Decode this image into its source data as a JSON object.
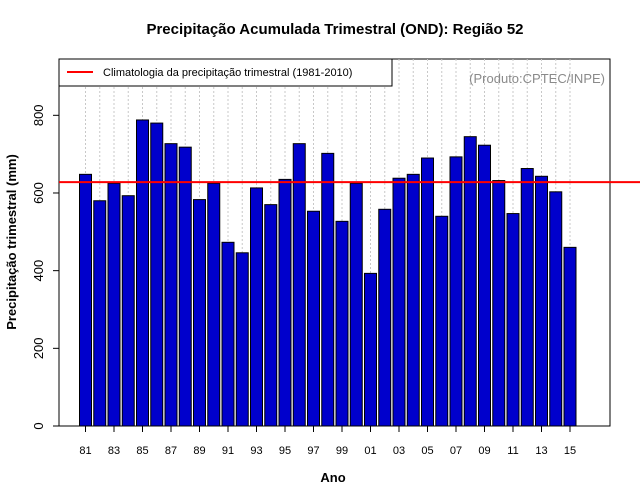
{
  "chart_data": {
    "type": "bar",
    "title": "Precipitação Acumulada Trimestral (OND): Região 52",
    "xlabel": "Ano",
    "ylabel": "Precipitação trimestral (mm)",
    "source": "(Produto:CPTEC/INPE)",
    "ylim": [
      0,
      945
    ],
    "yticks": [
      0,
      200,
      400,
      600,
      800
    ],
    "grid": "vertical dotted",
    "legend_position": "top-left",
    "categories": [
      "81",
      "82",
      "83",
      "84",
      "85",
      "86",
      "87",
      "88",
      "89",
      "90",
      "91",
      "92",
      "93",
      "94",
      "95",
      "96",
      "97",
      "98",
      "99",
      "00",
      "01",
      "02",
      "03",
      "04",
      "05",
      "06",
      "07",
      "08",
      "09",
      "10",
      "11",
      "12",
      "13",
      "14",
      "15"
    ],
    "xtick_labels": [
      "81",
      "83",
      "85",
      "87",
      "89",
      "91",
      "93",
      "95",
      "97",
      "99",
      "01",
      "03",
      "05",
      "07",
      "09",
      "11",
      "13",
      "15"
    ],
    "values": [
      648,
      580,
      625,
      593,
      788,
      780,
      727,
      718,
      583,
      625,
      473,
      446,
      613,
      570,
      635,
      727,
      553,
      702,
      527,
      625,
      393,
      558,
      638,
      648,
      690,
      540,
      693,
      745,
      723,
      632,
      547,
      663,
      643,
      603,
      460
    ],
    "bar_color": "#0000cc",
    "reference_line": {
      "label": "Climatologia da precipitação trimestral (1981-2010)",
      "value": 628,
      "color": "#ff0000"
    }
  }
}
